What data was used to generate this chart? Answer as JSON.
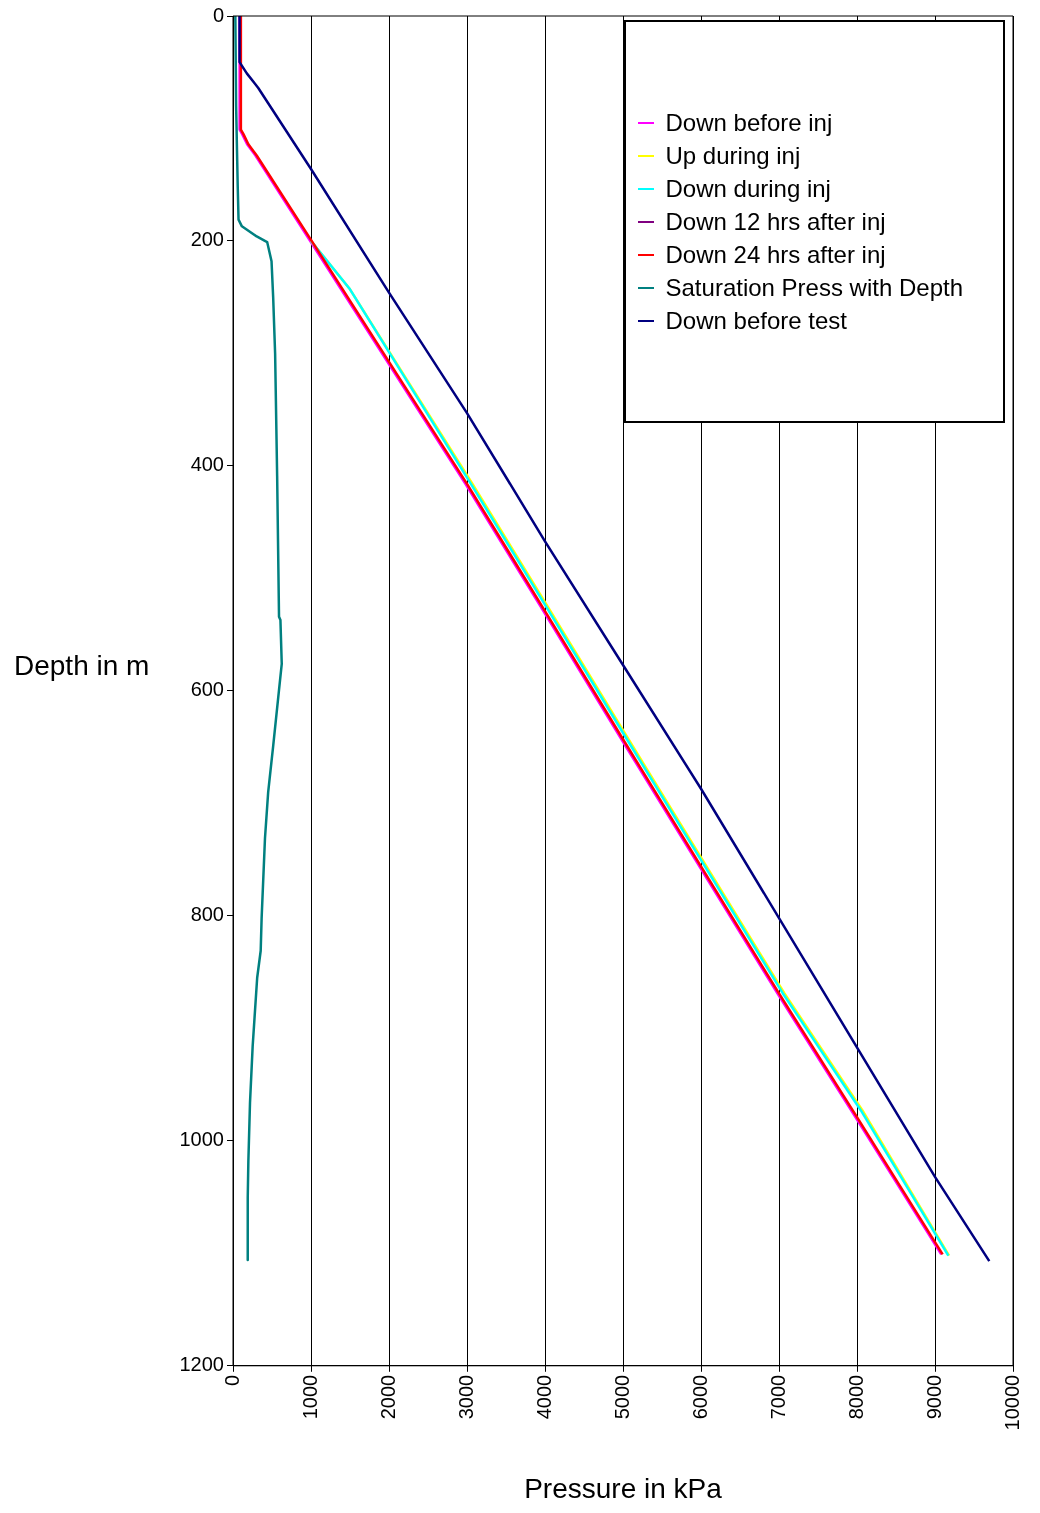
{
  "chart_data": {
    "type": "line",
    "xlabel": "Pressure in kPa",
    "ylabel": "Depth in m",
    "xlim": [
      0,
      10000
    ],
    "xticks": [
      0,
      1000,
      2000,
      3000,
      4000,
      5000,
      6000,
      7000,
      8000,
      9000,
      10000
    ],
    "ylim": [
      1200,
      0
    ],
    "yticks": [
      0,
      200,
      400,
      600,
      800,
      1000,
      1200
    ],
    "grid": "x",
    "legend": "top right",
    "series": [
      {
        "name": "Down before inj",
        "color": "#ff00ff",
        "x": [
          85,
          85,
          118,
          181,
          288,
          980,
          2980,
          3980,
          4980,
          6980,
          7980,
          9080
        ],
        "values": [
          0,
          101,
          105,
          114,
          124,
          199,
          416,
          529,
          643,
          869,
          979,
          1101
        ]
      },
      {
        "name": "Up during inj",
        "color": "#ffff00",
        "x": [
          1000,
          1500,
          3070,
          4070,
          5070,
          7070,
          8070,
          9180
        ],
        "values": [
          200,
          243,
          416,
          529,
          643,
          869,
          973,
          1102
        ]
      },
      {
        "name": "Down during inj",
        "color": "#00ffff",
        "x": [
          1000,
          1500,
          3050,
          4050,
          5050,
          7050,
          8050,
          9171
        ],
        "values": [
          200,
          243,
          416,
          529,
          643,
          869,
          973,
          1102
        ]
      },
      {
        "name": "Down 12 hrs after inj",
        "color": "#800080"
      },
      {
        "name": "Down 24 hrs after inj",
        "color": "#ff0000",
        "x": [
          101,
          101,
          134,
          197,
          304,
          1000,
          3000,
          4000,
          5000,
          7000,
          8000,
          9098
        ],
        "values": [
          0,
          101,
          105,
          114,
          124,
          199,
          416,
          529,
          643,
          869,
          979,
          1101
        ]
      },
      {
        "name": "Saturation Press with Depth",
        "color": "#008080",
        "x": [
          30,
          40,
          60,
          71,
          114,
          304,
          438,
          494,
          515,
          540,
          566,
          590,
          608,
          625,
          590,
          515,
          451,
          410,
          367,
          355,
          310,
          252,
          218,
          197,
          189,
          189
        ],
        "values": [
          0,
          80,
          150,
          181,
          187,
          196,
          201,
          218,
          250,
          300,
          409,
          534,
          537,
          576,
          599,
          649,
          690,
          731,
          802,
          831,
          855,
          916,
          966,
          1018,
          1050,
          1106
        ]
      },
      {
        "name": "Down before test",
        "color": "#000080",
        "x": [
          84,
          84,
          177,
          324,
          1000,
          2000,
          3000,
          4000,
          5000,
          6000,
          9000,
          9696
        ],
        "values": [
          0,
          41,
          51,
          64,
          136,
          246,
          353,
          467,
          577,
          687,
          1032,
          1107
        ]
      }
    ]
  }
}
